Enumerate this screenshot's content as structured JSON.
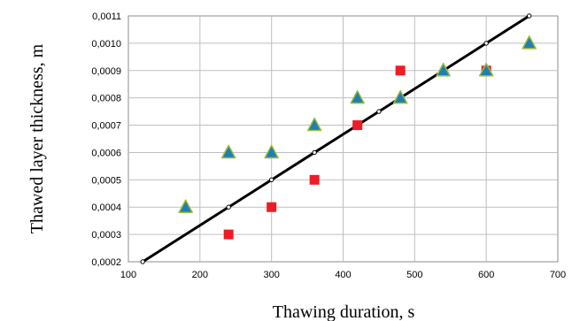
{
  "chart_data": {
    "type": "scatter",
    "xlabel": "Thawing duration, s",
    "ylabel": "Thawed layer thickness, m",
    "xlim": [
      100,
      700
    ],
    "ylim": [
      0.0002,
      0.0011
    ],
    "x_ticks": [
      "100",
      "200",
      "300",
      "400",
      "500",
      "600",
      "700"
    ],
    "y_ticks": [
      "0,0002",
      "0,0003",
      "0,0004",
      "0,0005",
      "0,0006",
      "0,0007",
      "0,0008",
      "0,0009",
      "0,0010",
      "0,0011"
    ],
    "grid": true,
    "series": [
      {
        "marker": "square",
        "color": "#ee1c24",
        "points": [
          [
            240,
            0.0003
          ],
          [
            300,
            0.0004
          ],
          [
            360,
            0.0005
          ],
          [
            420,
            0.0007
          ],
          [
            480,
            0.0009
          ],
          [
            600,
            0.0009
          ]
        ]
      },
      {
        "marker": "triangle",
        "color": "#1f7fb4",
        "edge_color": "#9bbb3a",
        "points": [
          [
            180,
            0.0004
          ],
          [
            240,
            0.0006
          ],
          [
            300,
            0.0006
          ],
          [
            360,
            0.0007
          ],
          [
            420,
            0.0008
          ],
          [
            480,
            0.0008
          ],
          [
            540,
            0.0009
          ],
          [
            600,
            0.0009
          ],
          [
            660,
            0.001
          ]
        ]
      },
      {
        "marker": "line",
        "color": "#000000",
        "points": [
          [
            120,
            0.0002
          ],
          [
            240,
            0.0004
          ],
          [
            300,
            0.0005
          ],
          [
            360,
            0.0006
          ],
          [
            450,
            0.00075
          ],
          [
            600,
            0.001
          ],
          [
            660,
            0.0011
          ]
        ]
      }
    ]
  }
}
